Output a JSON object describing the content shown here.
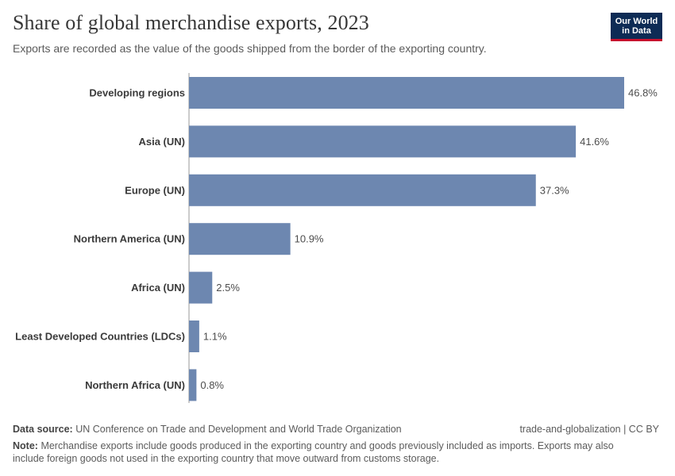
{
  "header": {
    "title": "Share of global merchandise exports, 2023",
    "subtitle": "Exports are recorded as the value of the goods shipped from the border of the exporting country."
  },
  "logo": {
    "line1": "Our World",
    "line2": "in Data"
  },
  "footer": {
    "source_label": "Data source:",
    "source_text": "UN Conference on Trade and Development and World Trade Organization",
    "license": "trade-and-globalization | CC BY",
    "note_label": "Note:",
    "note_text": "Merchandise exports include goods produced in the exporting country and goods previously included as imports. Exports may also include foreign goods not used in the exporting country that move outward from customs storage."
  },
  "colors": {
    "bar": "#6d87b0",
    "logo_bg": "#0d2b55",
    "logo_accent": "#c8102e"
  },
  "chart_data": {
    "type": "bar",
    "orientation": "horizontal",
    "title": "Share of global merchandise exports, 2023",
    "categories": [
      "Developing regions",
      "Asia (UN)",
      "Europe (UN)",
      "Northern America (UN)",
      "Africa (UN)",
      "Least Developed Countries (LDCs)",
      "Northern Africa (UN)"
    ],
    "values": [
      46.8,
      41.6,
      37.3,
      10.9,
      2.5,
      1.1,
      0.8
    ],
    "value_labels": [
      "46.8%",
      "41.6%",
      "37.3%",
      "10.9%",
      "2.5%",
      "1.1%",
      "0.8%"
    ],
    "unit": "%",
    "xlim": [
      0,
      46.8
    ],
    "grid": false,
    "legend": "none"
  }
}
